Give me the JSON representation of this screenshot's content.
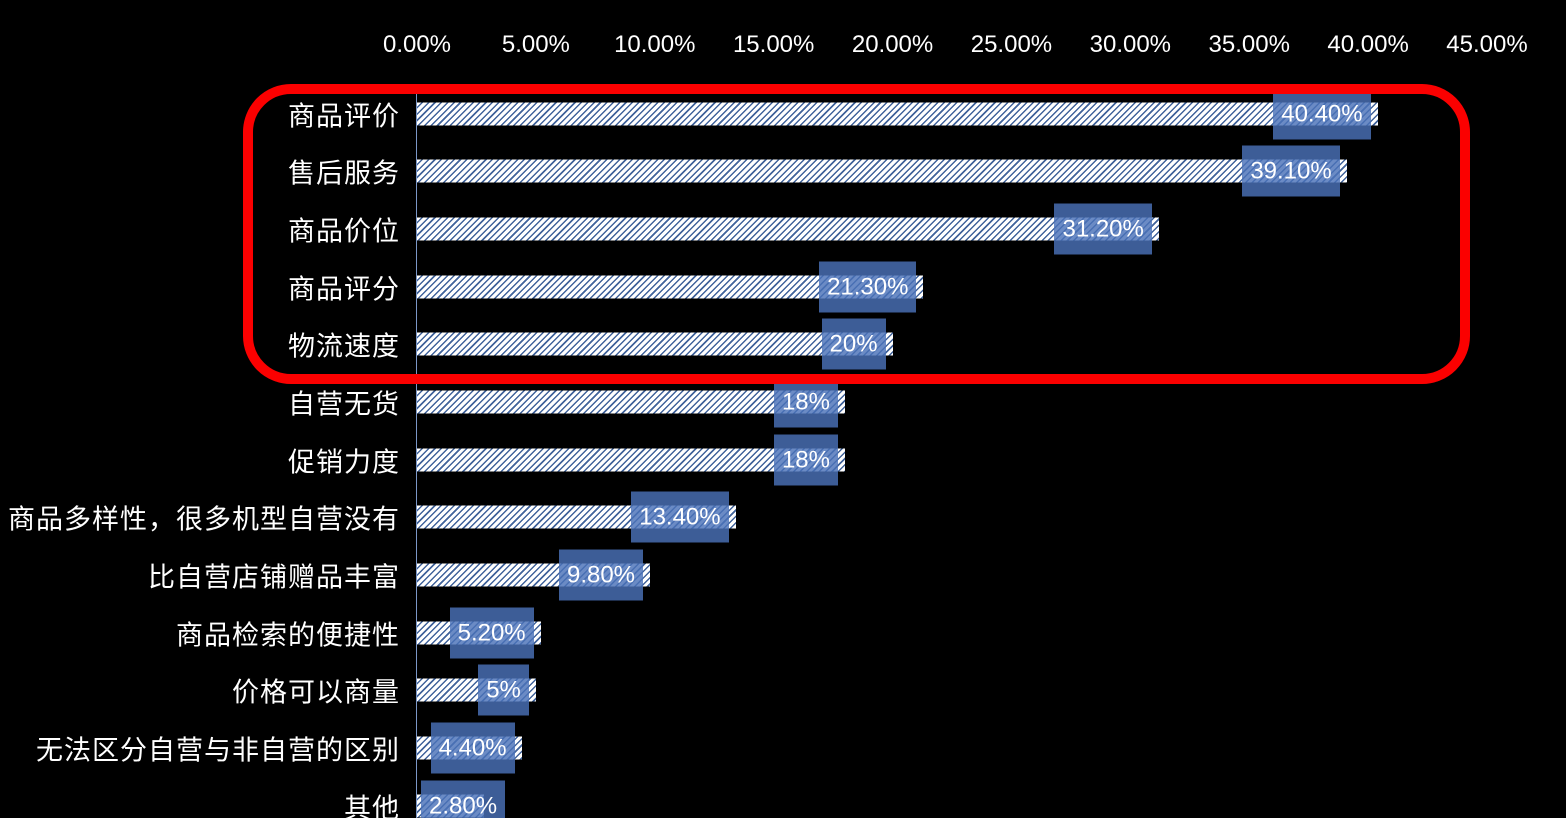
{
  "chart_data": {
    "type": "bar",
    "orientation": "horizontal",
    "title": "",
    "xlabel": "",
    "ylabel": "",
    "categories": [
      "商品评价",
      "售后服务",
      "商品价位",
      "商品评分",
      "物流速度",
      "自营无货",
      "促销力度",
      "商品多样性，很多机型自营没有",
      "比自营店铺赠品丰富",
      "商品检索的便捷性",
      "价格可以商量",
      "无法区分自营与非自营的区别",
      "其他"
    ],
    "values": [
      40.4,
      39.1,
      31.2,
      21.3,
      20,
      18,
      18,
      13.4,
      9.8,
      5.2,
      5,
      4.4,
      2.8
    ],
    "value_labels": [
      "40.40%",
      "39.10%",
      "31.20%",
      "21.30%",
      "20%",
      "18%",
      "18%",
      "13.40%",
      "9.80%",
      "5.20%",
      "5%",
      "4.40%",
      "2.80%"
    ],
    "x_axis": {
      "tick_labels": [
        "0.00%",
        "5.00%",
        "10.00%",
        "15.00%",
        "20.00%",
        "25.00%",
        "30.00%",
        "35.00%",
        "40.00%",
        "45.00%"
      ],
      "min": 0,
      "max": 45,
      "step": 5,
      "position": "top",
      "grid": false
    },
    "legend": null,
    "annotation": {
      "shape": "red-rounded-rectangle-outline",
      "purpose": "highlights top five categories",
      "rows_enclosed": [
        "商品评价",
        "售后服务",
        "商品价位",
        "商品评分",
        "物流速度"
      ]
    },
    "colors": {
      "background": "#000000",
      "bar_fill": "#ffffff",
      "bar_hatch_line": "#41639b",
      "value_label_background": "#3d5e97",
      "value_label_text": "#ffffff",
      "category_text": "#ffffff",
      "axis_tick_text": "#ffffff",
      "axis_line": "#7b97c7",
      "highlight_outline": "#fb0000"
    }
  }
}
